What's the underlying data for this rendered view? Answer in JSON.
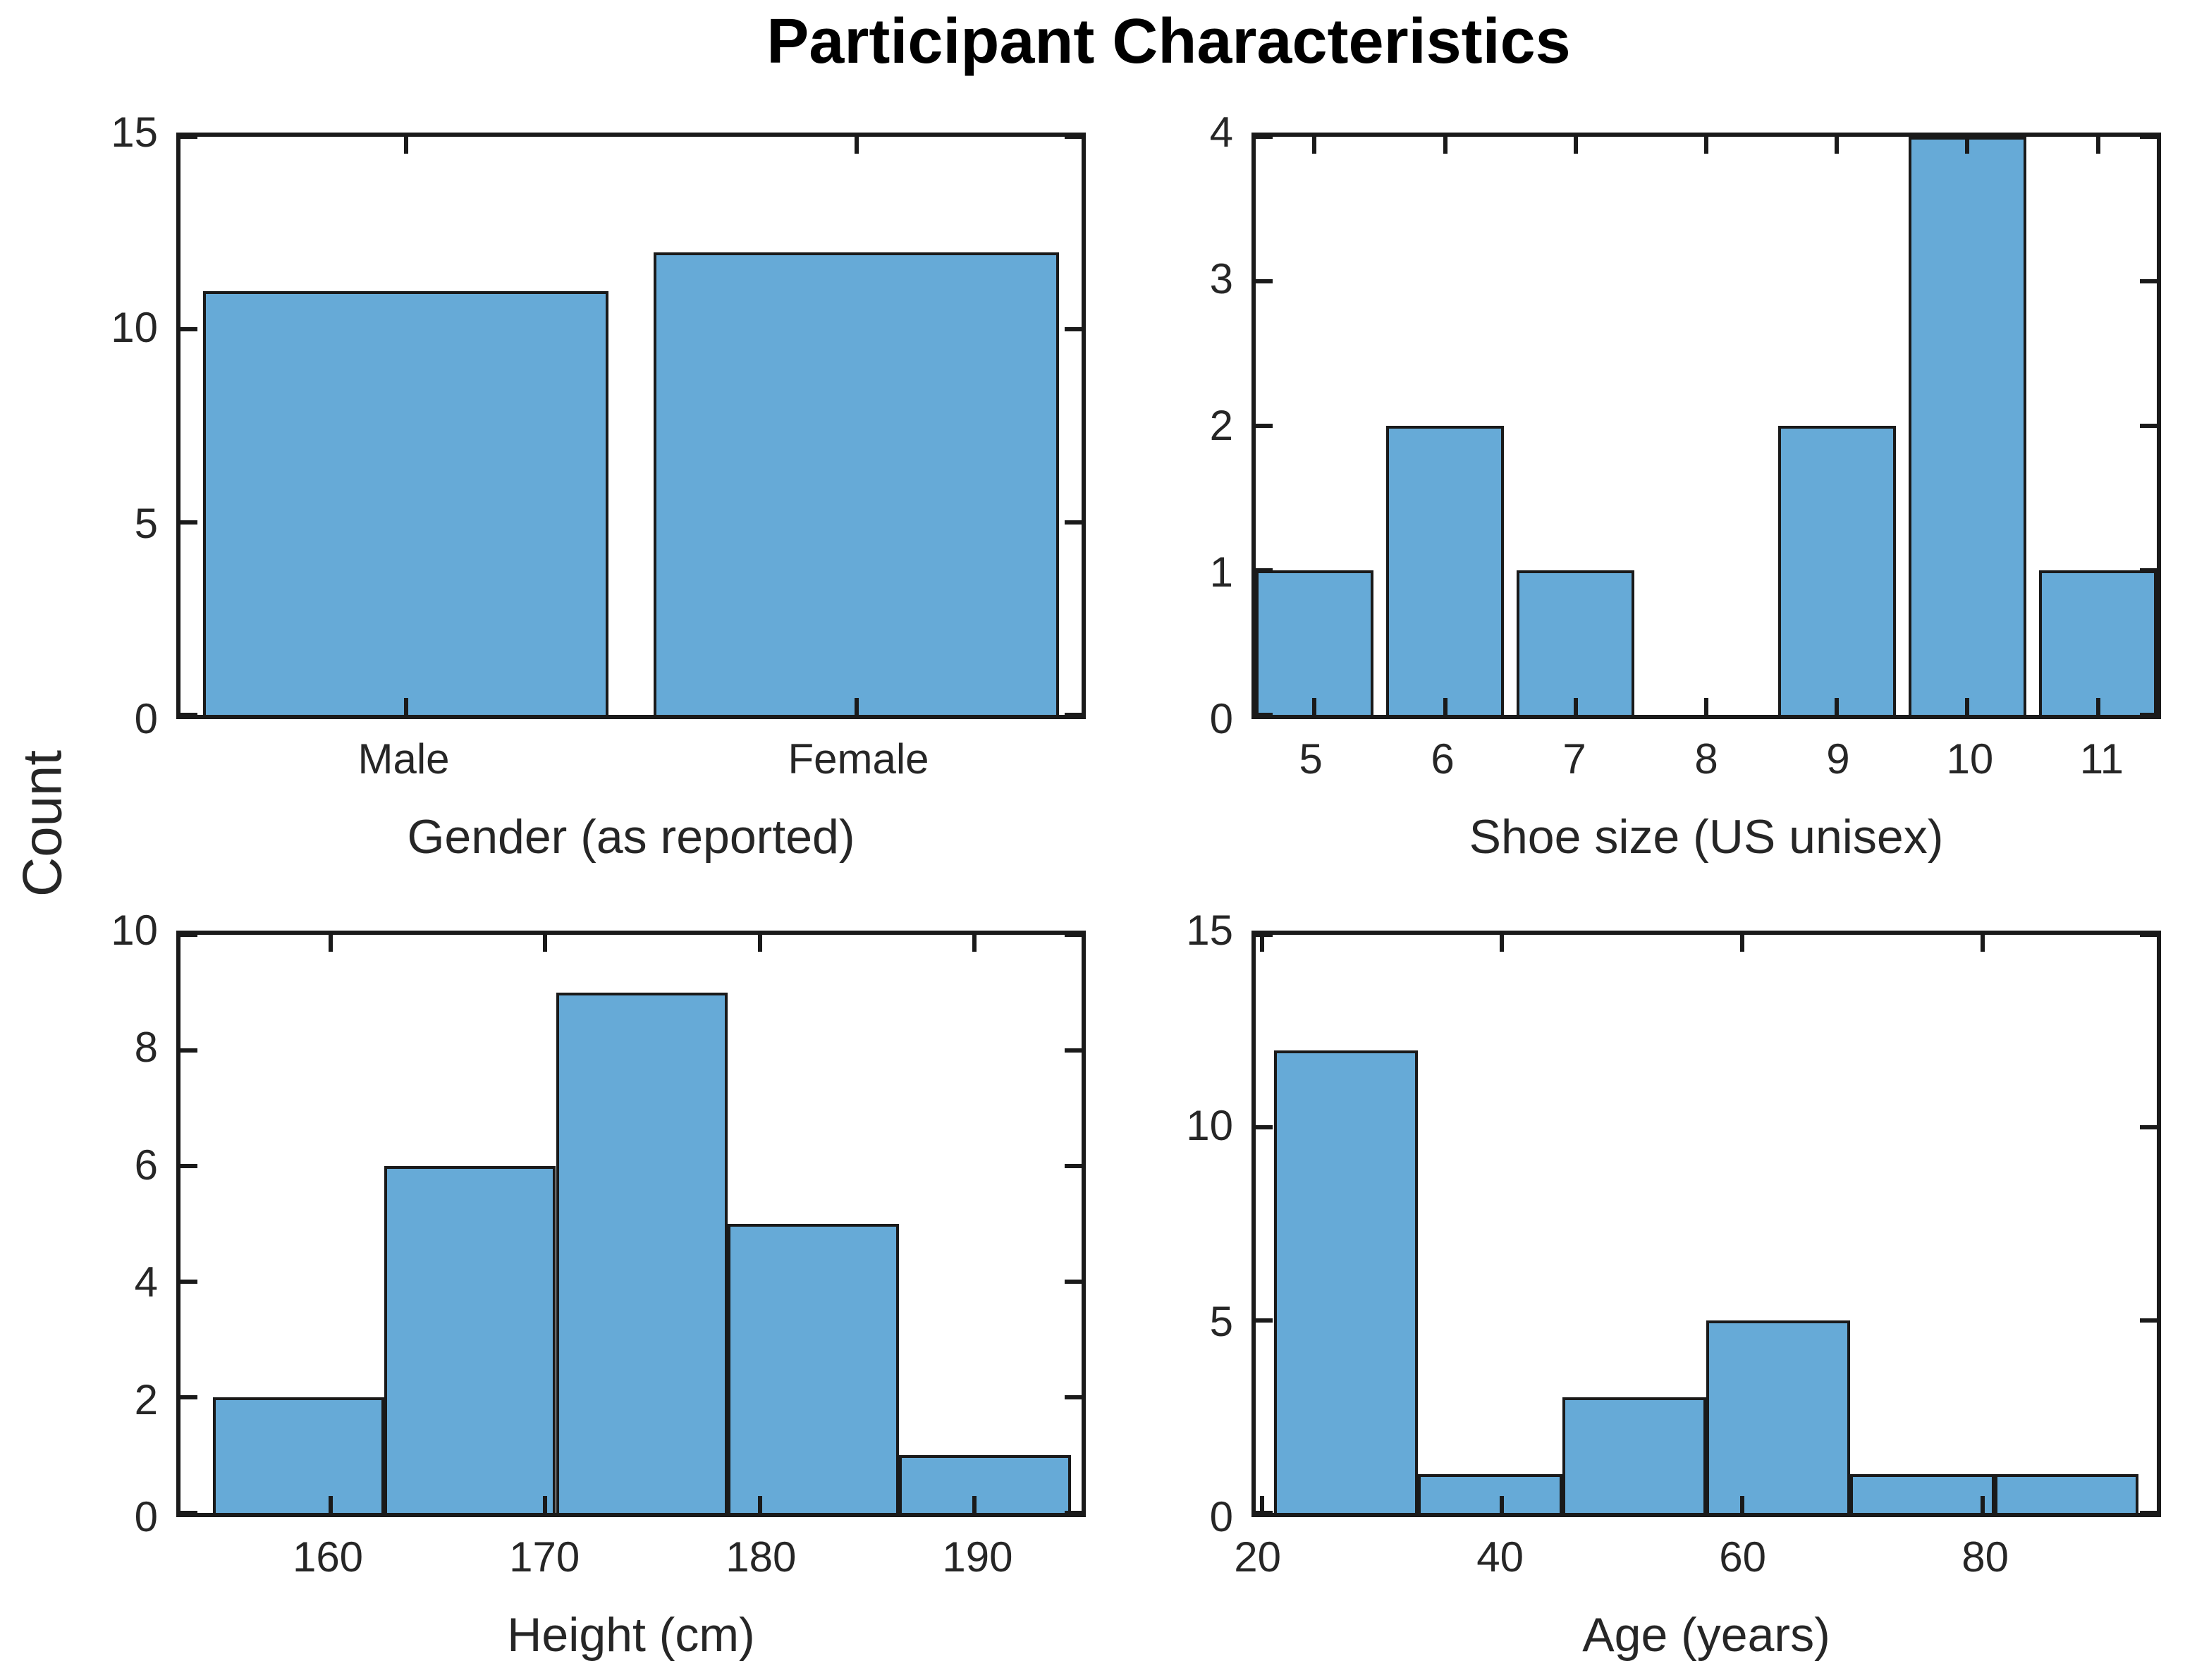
{
  "figure": {
    "title": "Participant Characteristics",
    "shared_ylabel": "Count"
  },
  "colors": {
    "bar_fill": "#66AAD7",
    "bar_edge": "#1a1a1a",
    "axis": "#1a1a1a",
    "text": "#262626",
    "title_text": "#000000",
    "background": "#ffffff"
  },
  "chart_data": [
    {
      "id": "gender",
      "type": "bar",
      "title": "",
      "xlabel": "Gender (as reported)",
      "ylabel": "Count",
      "categories": [
        "Male",
        "Female"
      ],
      "values": [
        11,
        12
      ],
      "x_centers": [
        1,
        2
      ],
      "bar_width": 0.9,
      "xlim": [
        0.5,
        2.5
      ],
      "ylim": [
        0,
        15
      ],
      "yticks": [
        0,
        5,
        10,
        15
      ],
      "xticks": [
        {
          "x": 1,
          "label": "Male"
        },
        {
          "x": 2,
          "label": "Female"
        }
      ],
      "grid": false,
      "legend": "none"
    },
    {
      "id": "shoe-size",
      "type": "bar",
      "title": "",
      "xlabel": "Shoe size (US unisex)",
      "ylabel": "Count",
      "categories": [
        "5",
        "6",
        "7",
        "8",
        "9",
        "10",
        "11"
      ],
      "values": [
        1,
        2,
        1,
        0,
        2,
        4,
        1
      ],
      "x_centers": [
        5,
        6,
        7,
        8,
        9,
        10,
        11
      ],
      "bar_width": 0.9,
      "xlim": [
        4.55,
        11.45
      ],
      "ylim": [
        0,
        4
      ],
      "yticks": [
        0,
        1,
        2,
        3,
        4
      ],
      "xticks": [
        {
          "x": 5,
          "label": "5"
        },
        {
          "x": 6,
          "label": "6"
        },
        {
          "x": 7,
          "label": "7"
        },
        {
          "x": 8,
          "label": "8"
        },
        {
          "x": 9,
          "label": "9"
        },
        {
          "x": 10,
          "label": "10"
        },
        {
          "x": 11,
          "label": "11"
        }
      ],
      "grid": false,
      "legend": "none"
    },
    {
      "id": "height",
      "type": "bar",
      "title": "",
      "xlabel": "Height (cm)",
      "ylabel": "Count",
      "bin_edges": [
        154.5,
        162.5,
        170.5,
        178.5,
        186.5,
        194.5
      ],
      "values": [
        2,
        6,
        9,
        5,
        1
      ],
      "xlim": [
        153,
        195
      ],
      "ylim": [
        0,
        10
      ],
      "yticks": [
        0,
        2,
        4,
        6,
        8,
        10
      ],
      "xticks": [
        {
          "x": 160,
          "label": "160"
        },
        {
          "x": 170,
          "label": "170"
        },
        {
          "x": 180,
          "label": "180"
        },
        {
          "x": 190,
          "label": "190"
        }
      ],
      "grid": false,
      "legend": "none"
    },
    {
      "id": "age",
      "type": "bar",
      "title": "",
      "xlabel": "Age (years)",
      "ylabel": "Count",
      "bin_edges": [
        21,
        33,
        45,
        57,
        69,
        81,
        93
      ],
      "values": [
        12,
        1,
        3,
        5,
        1,
        1
      ],
      "xlim": [
        19.5,
        94.5
      ],
      "ylim": [
        0,
        15
      ],
      "yticks": [
        0,
        5,
        10,
        15
      ],
      "xticks": [
        {
          "x": 20,
          "label": "20"
        },
        {
          "x": 40,
          "label": "40"
        },
        {
          "x": 60,
          "label": "60"
        },
        {
          "x": 80,
          "label": "80"
        }
      ],
      "grid": false,
      "legend": "none"
    }
  ]
}
